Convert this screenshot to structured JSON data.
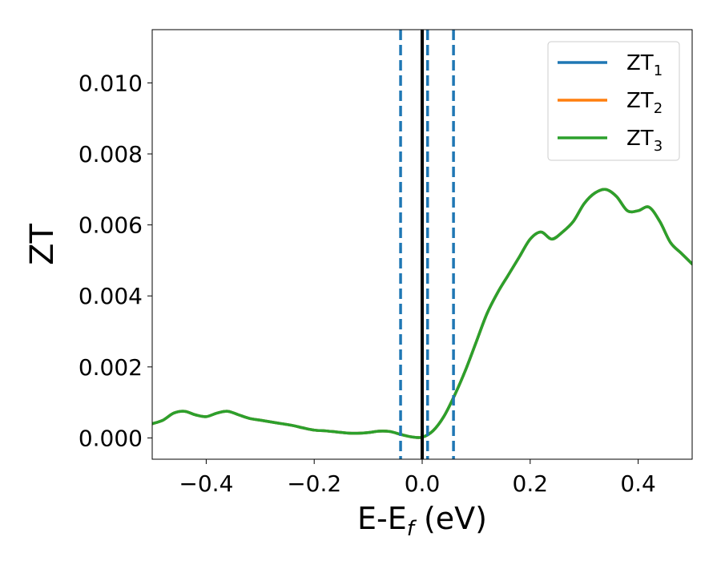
{
  "chart_data": {
    "type": "line",
    "xlabel": "E-E_f (eV)",
    "xlabel_main": "E-E",
    "xlabel_sub": "f",
    "xlabel_unit": " (eV)",
    "ylabel": "ZT",
    "xlim": [
      -0.5,
      0.5
    ],
    "ylim": [
      -0.0006,
      0.0115
    ],
    "xticks": [
      -0.4,
      -0.2,
      0.0,
      0.2,
      0.4
    ],
    "xtick_labels": [
      "−0.4",
      "−0.2",
      "0.0",
      "0.2",
      "0.4"
    ],
    "yticks": [
      0.0,
      0.002,
      0.004,
      0.006,
      0.008,
      0.01
    ],
    "ytick_labels": [
      "0.000",
      "0.002",
      "0.004",
      "0.006",
      "0.008",
      "0.010"
    ],
    "grid": false,
    "legend_position": "top-right",
    "series": [
      {
        "name": "ZT_1",
        "label_main": "ZT",
        "label_sub": "1",
        "color": "#1f77b4",
        "x": [
          -0.5,
          -0.48,
          -0.46,
          -0.44,
          -0.42,
          -0.4,
          -0.38,
          -0.36,
          -0.34,
          -0.32,
          -0.3,
          -0.28,
          -0.26,
          -0.24,
          -0.22,
          -0.2,
          -0.18,
          -0.16,
          -0.14,
          -0.12,
          -0.1,
          -0.08,
          -0.06,
          -0.04,
          -0.02,
          0.0,
          0.02,
          0.04,
          0.06,
          0.08,
          0.1,
          0.12,
          0.14,
          0.16,
          0.18,
          0.2,
          0.22,
          0.24,
          0.26,
          0.28,
          0.3,
          0.32,
          0.34,
          0.36,
          0.38,
          0.4,
          0.42,
          0.44,
          0.46,
          0.48,
          0.5
        ],
        "y": [
          0.0004,
          0.0005,
          0.0007,
          0.00075,
          0.00065,
          0.0006,
          0.0007,
          0.00075,
          0.00065,
          0.00055,
          0.0005,
          0.00045,
          0.0004,
          0.00035,
          0.00028,
          0.00022,
          0.0002,
          0.00017,
          0.00014,
          0.00013,
          0.00015,
          0.00019,
          0.00018,
          0.0001,
          3e-05,
          2e-05,
          0.0002,
          0.0006,
          0.0012,
          0.0019,
          0.0027,
          0.0035,
          0.0041,
          0.0046,
          0.0051,
          0.0056,
          0.0058,
          0.0056,
          0.0058,
          0.0061,
          0.0066,
          0.0069,
          0.007,
          0.0068,
          0.0064,
          0.0064,
          0.0065,
          0.0061,
          0.0055,
          0.0052,
          0.0049
        ]
      },
      {
        "name": "ZT_2",
        "label_main": "ZT",
        "label_sub": "2",
        "color": "#ff7f0e",
        "x": [
          -0.5,
          -0.48,
          -0.46,
          -0.44,
          -0.42,
          -0.4,
          -0.38,
          -0.36,
          -0.34,
          -0.32,
          -0.3,
          -0.28,
          -0.26,
          -0.24,
          -0.22,
          -0.2,
          -0.18,
          -0.16,
          -0.14,
          -0.12,
          -0.1,
          -0.08,
          -0.06,
          -0.04,
          -0.02,
          0.0,
          0.02,
          0.04,
          0.06,
          0.08,
          0.1,
          0.12,
          0.14,
          0.16,
          0.18,
          0.2,
          0.22,
          0.24,
          0.26,
          0.28,
          0.3,
          0.32,
          0.34,
          0.36,
          0.38,
          0.4,
          0.42,
          0.44,
          0.46,
          0.48,
          0.5
        ],
        "y": [
          0.0004,
          0.0005,
          0.0007,
          0.00075,
          0.00065,
          0.0006,
          0.0007,
          0.00075,
          0.00065,
          0.00055,
          0.0005,
          0.00045,
          0.0004,
          0.00035,
          0.00028,
          0.00022,
          0.0002,
          0.00017,
          0.00014,
          0.00013,
          0.00015,
          0.00019,
          0.00018,
          0.0001,
          3e-05,
          2e-05,
          0.0002,
          0.0006,
          0.0012,
          0.0019,
          0.0027,
          0.0035,
          0.0041,
          0.0046,
          0.0051,
          0.0056,
          0.0058,
          0.0056,
          0.0058,
          0.0061,
          0.0066,
          0.0069,
          0.007,
          0.0068,
          0.0064,
          0.0064,
          0.0065,
          0.0061,
          0.0055,
          0.0052,
          0.0049
        ]
      },
      {
        "name": "ZT_3",
        "label_main": "ZT",
        "label_sub": "3",
        "color": "#2ca02c",
        "x": [
          -0.5,
          -0.48,
          -0.46,
          -0.44,
          -0.42,
          -0.4,
          -0.38,
          -0.36,
          -0.34,
          -0.32,
          -0.3,
          -0.28,
          -0.26,
          -0.24,
          -0.22,
          -0.2,
          -0.18,
          -0.16,
          -0.14,
          -0.12,
          -0.1,
          -0.08,
          -0.06,
          -0.04,
          -0.02,
          0.0,
          0.02,
          0.04,
          0.06,
          0.08,
          0.1,
          0.12,
          0.14,
          0.16,
          0.18,
          0.2,
          0.22,
          0.24,
          0.26,
          0.28,
          0.3,
          0.32,
          0.34,
          0.36,
          0.38,
          0.4,
          0.42,
          0.44,
          0.46,
          0.48,
          0.5
        ],
        "y": [
          0.0004,
          0.0005,
          0.0007,
          0.00075,
          0.00065,
          0.0006,
          0.0007,
          0.00075,
          0.00065,
          0.00055,
          0.0005,
          0.00045,
          0.0004,
          0.00035,
          0.00028,
          0.00022,
          0.0002,
          0.00017,
          0.00014,
          0.00013,
          0.00015,
          0.00019,
          0.00018,
          0.0001,
          3e-05,
          2e-05,
          0.0002,
          0.0006,
          0.0012,
          0.0019,
          0.0027,
          0.0035,
          0.0041,
          0.0046,
          0.0051,
          0.0056,
          0.0058,
          0.0056,
          0.0058,
          0.0061,
          0.0066,
          0.0069,
          0.007,
          0.0068,
          0.0064,
          0.0064,
          0.0065,
          0.0061,
          0.0055,
          0.0052,
          0.0049
        ]
      }
    ],
    "vlines": [
      {
        "x": -0.04,
        "style": "dashed",
        "color": "#1f77b4"
      },
      {
        "x": 0.0,
        "style": "solid",
        "color": "#000000"
      },
      {
        "x": 0.01,
        "style": "dashed",
        "color": "#1f77b4"
      },
      {
        "x": 0.058,
        "style": "dashed",
        "color": "#1f77b4"
      }
    ]
  }
}
